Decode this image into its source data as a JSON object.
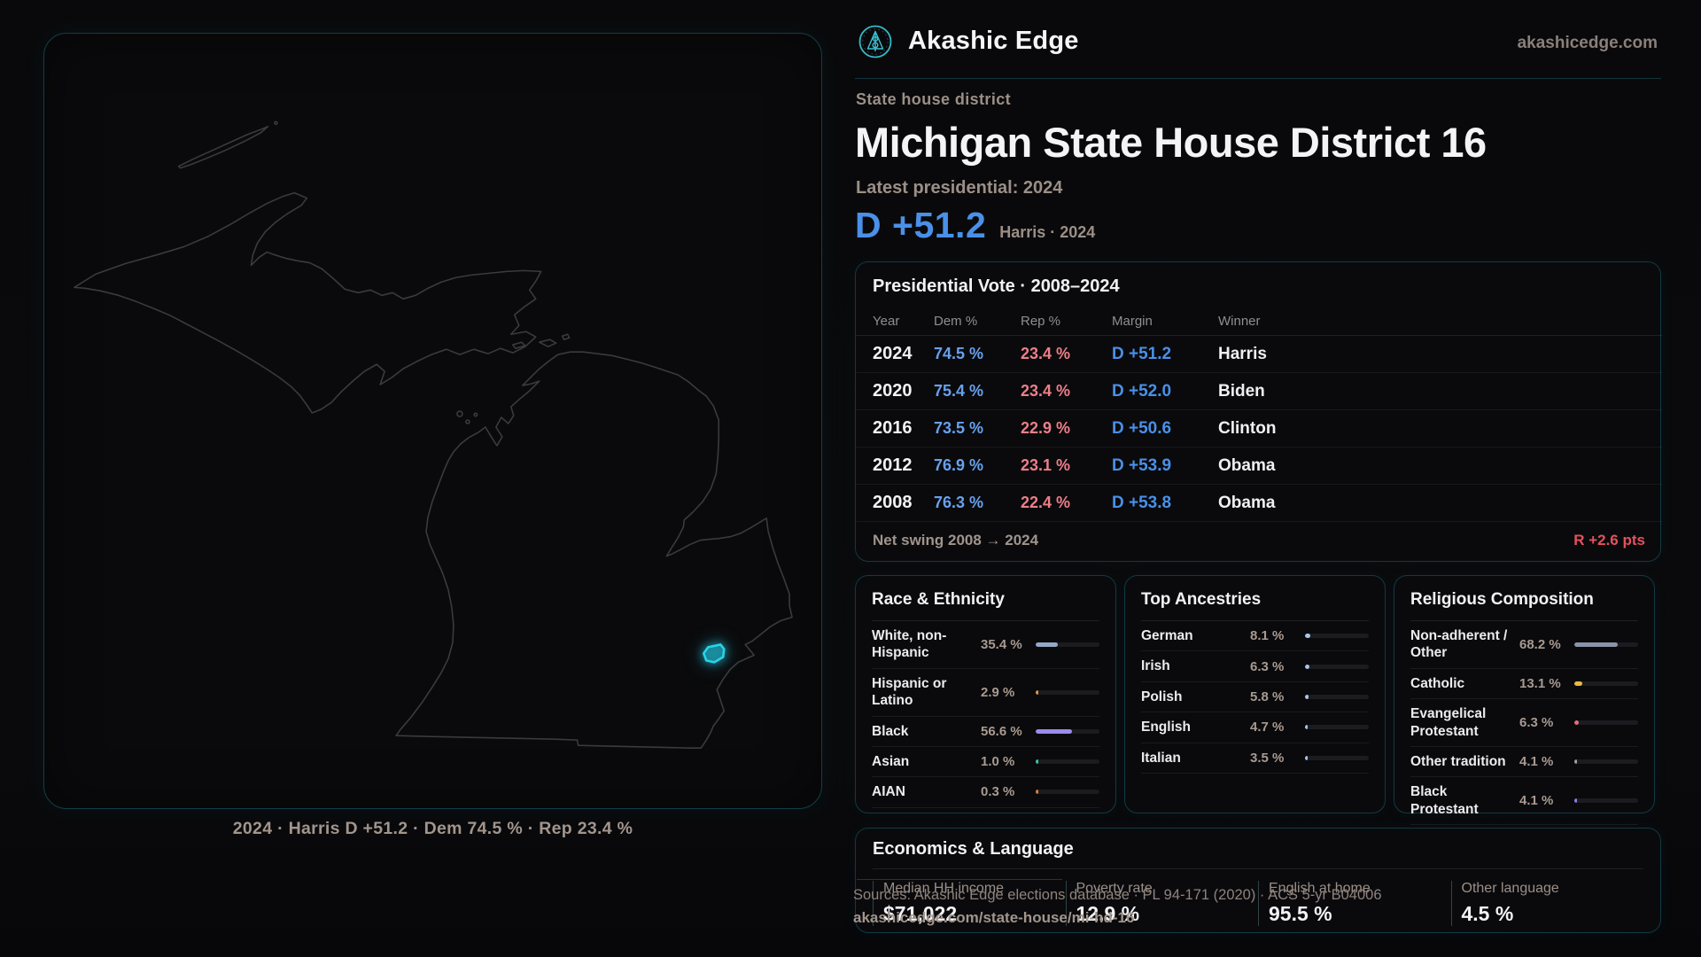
{
  "brand": {
    "name": "Akashic Edge",
    "domain": "akashicedge.com",
    "accent_color": "#2dd4ee"
  },
  "page": {
    "eyebrow": "State house district",
    "title": "Michigan State House District 16",
    "latest_label": "Latest presidential: 2024",
    "headline_margin": "D +51.2",
    "headline_margin_sub": "Harris · 2024",
    "margin_color_dem": "#4a90e8",
    "margin_color_rep": "#e4515c"
  },
  "map": {
    "caption": "2024 · Harris D +51.2 · Dem 74.5 % · Rep 23.4 %",
    "highlight_name": "district-16",
    "highlight_color": "#29d3ea",
    "outline_color": "#3a3a3f"
  },
  "vote_table": {
    "title": "Presidential Vote · 2008–2024",
    "columns": [
      "Year",
      "Dem %",
      "Rep %",
      "Margin",
      "Winner"
    ],
    "rows": [
      {
        "year": "2024",
        "dem": "74.5 %",
        "rep": "23.4 %",
        "margin": "D +51.2",
        "winner": "Harris"
      },
      {
        "year": "2020",
        "dem": "75.4 %",
        "rep": "23.4 %",
        "margin": "D +52.0",
        "winner": "Biden"
      },
      {
        "year": "2016",
        "dem": "73.5 %",
        "rep": "22.9 %",
        "margin": "D +50.6",
        "winner": "Clinton"
      },
      {
        "year": "2012",
        "dem": "76.9 %",
        "rep": "23.1 %",
        "margin": "D +53.9",
        "winner": "Obama"
      },
      {
        "year": "2008",
        "dem": "76.3 %",
        "rep": "22.4 %",
        "margin": "D +53.8",
        "winner": "Obama"
      }
    ],
    "net_swing_label": "Net swing 2008 → 2024",
    "net_swing_value": "R +2.6 pts"
  },
  "demographics": {
    "cards": [
      {
        "title": "Race & Ethnicity",
        "rows": [
          {
            "label": "White, non-Hispanic",
            "value": "35.4 %",
            "pct": 35.4,
            "color": "#93a9c6"
          },
          {
            "label": "Hispanic or Latino",
            "value": "2.9 %",
            "pct": 2.9,
            "color": "#e09b3a"
          },
          {
            "label": "Black",
            "value": "56.6 %",
            "pct": 56.6,
            "color": "#9a8bf0"
          },
          {
            "label": "Asian",
            "value": "1.0 %",
            "pct": 1.0,
            "color": "#36c9ae"
          },
          {
            "label": "AIAN",
            "value": "0.3 %",
            "pct": 0.3,
            "color": "#d97f3d"
          }
        ]
      },
      {
        "title": "Top Ancestries",
        "rows": [
          {
            "label": "German",
            "value": "8.1 %",
            "pct": 8.1,
            "color": "#a9c6e8"
          },
          {
            "label": "Irish",
            "value": "6.3 %",
            "pct": 6.3,
            "color": "#a9c6e8"
          },
          {
            "label": "Polish",
            "value": "5.8 %",
            "pct": 5.8,
            "color": "#a9c6e8"
          },
          {
            "label": "English",
            "value": "4.7 %",
            "pct": 4.7,
            "color": "#a9c6e8"
          },
          {
            "label": "Italian",
            "value": "3.5 %",
            "pct": 3.5,
            "color": "#a9c6e8"
          }
        ]
      },
      {
        "title": "Religious Composition",
        "rows": [
          {
            "label": "Non-adherent / Other",
            "value": "68.2 %",
            "pct": 68.2,
            "color": "#8a94a8"
          },
          {
            "label": "Catholic",
            "value": "13.1 %",
            "pct": 13.1,
            "color": "#e8b93f"
          },
          {
            "label": "Evangelical Protestant",
            "value": "6.3 %",
            "pct": 6.3,
            "color": "#e56d76"
          },
          {
            "label": "Other tradition",
            "value": "4.1 %",
            "pct": 4.1,
            "color": "#99a1ad"
          },
          {
            "label": "Black Protestant",
            "value": "4.1 %",
            "pct": 4.1,
            "color": "#8d7df2"
          }
        ]
      }
    ]
  },
  "economics": {
    "title": "Economics & Language",
    "stats": [
      {
        "label": "Median HH income",
        "value": "$71,022"
      },
      {
        "label": "Poverty rate",
        "value": "12.9 %"
      },
      {
        "label": "English at home",
        "value": "95.5 %"
      },
      {
        "label": "Other language",
        "value": "4.5 %"
      }
    ]
  },
  "footer": {
    "sources": "Sources: Akashic Edge elections database · PL 94-171 (2020) · ACS 5-yr B04006",
    "permalink": "akashicedge.com/state-house/mi-hd-16"
  }
}
